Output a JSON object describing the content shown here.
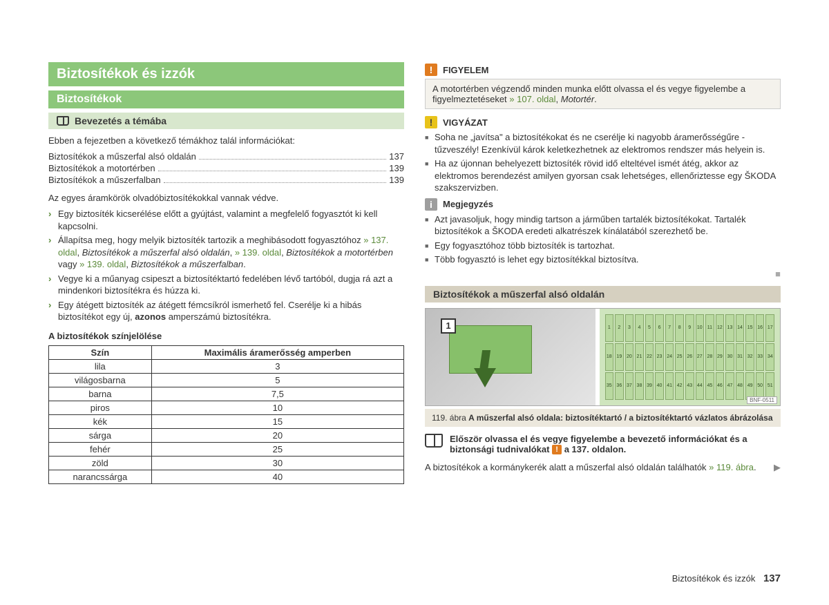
{
  "left": {
    "title": "Biztosítékok és izzók",
    "section": "Biztosítékok",
    "intro_heading": "Bevezetés a témába",
    "intro_line": "Ebben a fejezetben a következő témákhoz talál információkat:",
    "toc": [
      {
        "label": "Biztosítékok a műszerfal alsó oldalán",
        "page": "137"
      },
      {
        "label": "Biztosítékok a motortérben",
        "page": "139"
      },
      {
        "label": "Biztosítékok a műszerfalban",
        "page": "139"
      }
    ],
    "line_after_toc": "Az egyes áramkörök olvadóbiztosítékokkal vannak védve.",
    "bullets": [
      {
        "text": "Egy biztosíték kicserélése előtt a gyújtást, valamint a megfelelő fogyasztót ki kell kapcsolni."
      },
      {
        "text_pre": "Állapítsa meg, hogy melyik biztosíték tartozik a meghibásodott fogyasztóhoz ",
        "link1": "» 137. oldal",
        "mid1": ", ",
        "ital1": "Biztosítékok a műszerfal alsó oldalán",
        "mid2": ", ",
        "link2": "» 139. oldal",
        "mid3": ", ",
        "ital2": "Biztosítékok a motortérben",
        "mid4": " vagy ",
        "link3": "» 139. oldal",
        "mid5": ", ",
        "ital3": "Biztosítékok a műszerfalban",
        "tail": "."
      },
      {
        "text": "Vegye ki a műanyag csipeszt a biztosítéktartó fedelében lévő tartóból, dugja rá azt a mindenkori biztosítékra és húzza ki."
      },
      {
        "text_pre": "Egy átégett biztosíték az átégett fémcsíkról ismerhető fel. Cserélje ki a hibás biztosítékot egy új, ",
        "bold": "azonos",
        "tail": " amperszámú biztosítékra."
      }
    ],
    "table_title": "A biztosítékok színjelölése",
    "table_headers": [
      "Szín",
      "Maximális áramerősség amperben"
    ],
    "table_rows": [
      [
        "lila",
        "3"
      ],
      [
        "világosbarna",
        "5"
      ],
      [
        "barna",
        "7,5"
      ],
      [
        "piros",
        "10"
      ],
      [
        "kék",
        "15"
      ],
      [
        "sárga",
        "20"
      ],
      [
        "fehér",
        "25"
      ],
      [
        "zöld",
        "30"
      ],
      [
        "narancssárga",
        "40"
      ]
    ]
  },
  "right": {
    "warn_title": "FIGYELEM",
    "warn_body_pre": "A motortérben végzendő minden munka előtt olvassa el és vegye figyelembe a figyelmeztetéseket ",
    "warn_link": "» 107. oldal",
    "warn_body_post": ", ",
    "warn_ital": "Motortér",
    "warn_tail": ".",
    "caution_title": "VIGYÁZAT",
    "caution_items": [
      "Soha ne „javítsa\" a biztosítékokat és ne cserélje ki nagyobb áramerősségűre - tűzveszély! Ezenkívül károk keletkezhetnek az elektromos rendszer más helyein is.",
      "Ha az újonnan behelyezett biztosíték rövid idő elteltével ismét átég, akkor az elektromos berendezést amilyen gyorsan csak lehetséges, ellenőriztesse egy ŠKODA szakszervizben."
    ],
    "note_title": "Megjegyzés",
    "note_items": [
      "Azt javasoljuk, hogy mindig tartson a járműben tartalék biztosítékokat. Tartalék biztosítékok a ŠKODA eredeti alkatrészek kínálatából szerezhető be.",
      "Egy fogyasztóhoz több biztosíték is tartozhat.",
      "Több fogyasztó is lehet egy biztosítékkal biztosítva."
    ],
    "panel_heading": "Biztosítékok a műszerfal alsó oldalán",
    "figure_badge": "1",
    "figure_ref": "BNF-0511",
    "fuse_numbers": {
      "start": 1,
      "end": 51
    },
    "caption_pre": "119. ábra  ",
    "caption_bold": "A műszerfal alsó oldala: biztosítéktartó / a biztosítéktartó vázlatos ábrázolása",
    "readfirst_pre": "Először olvassa el és vegye figyelembe a bevezető információkat és a biztonsági tudnivalókat ",
    "readfirst_post": " a 137. oldalon.",
    "bottom_text_pre": "A biztosítékok a kormánykerék alatt a műszerfal alsó oldalán találhatók ",
    "bottom_link": "» 119. ábra",
    "bottom_tail": "."
  },
  "footer": {
    "section": "Biztosítékok és izzók",
    "page": "137"
  },
  "colors": {
    "green_bar": "#8cc77a",
    "accent": "#5b8a3a",
    "beige": "#d6d0c0",
    "callout_bg": "#f4f2ec"
  }
}
